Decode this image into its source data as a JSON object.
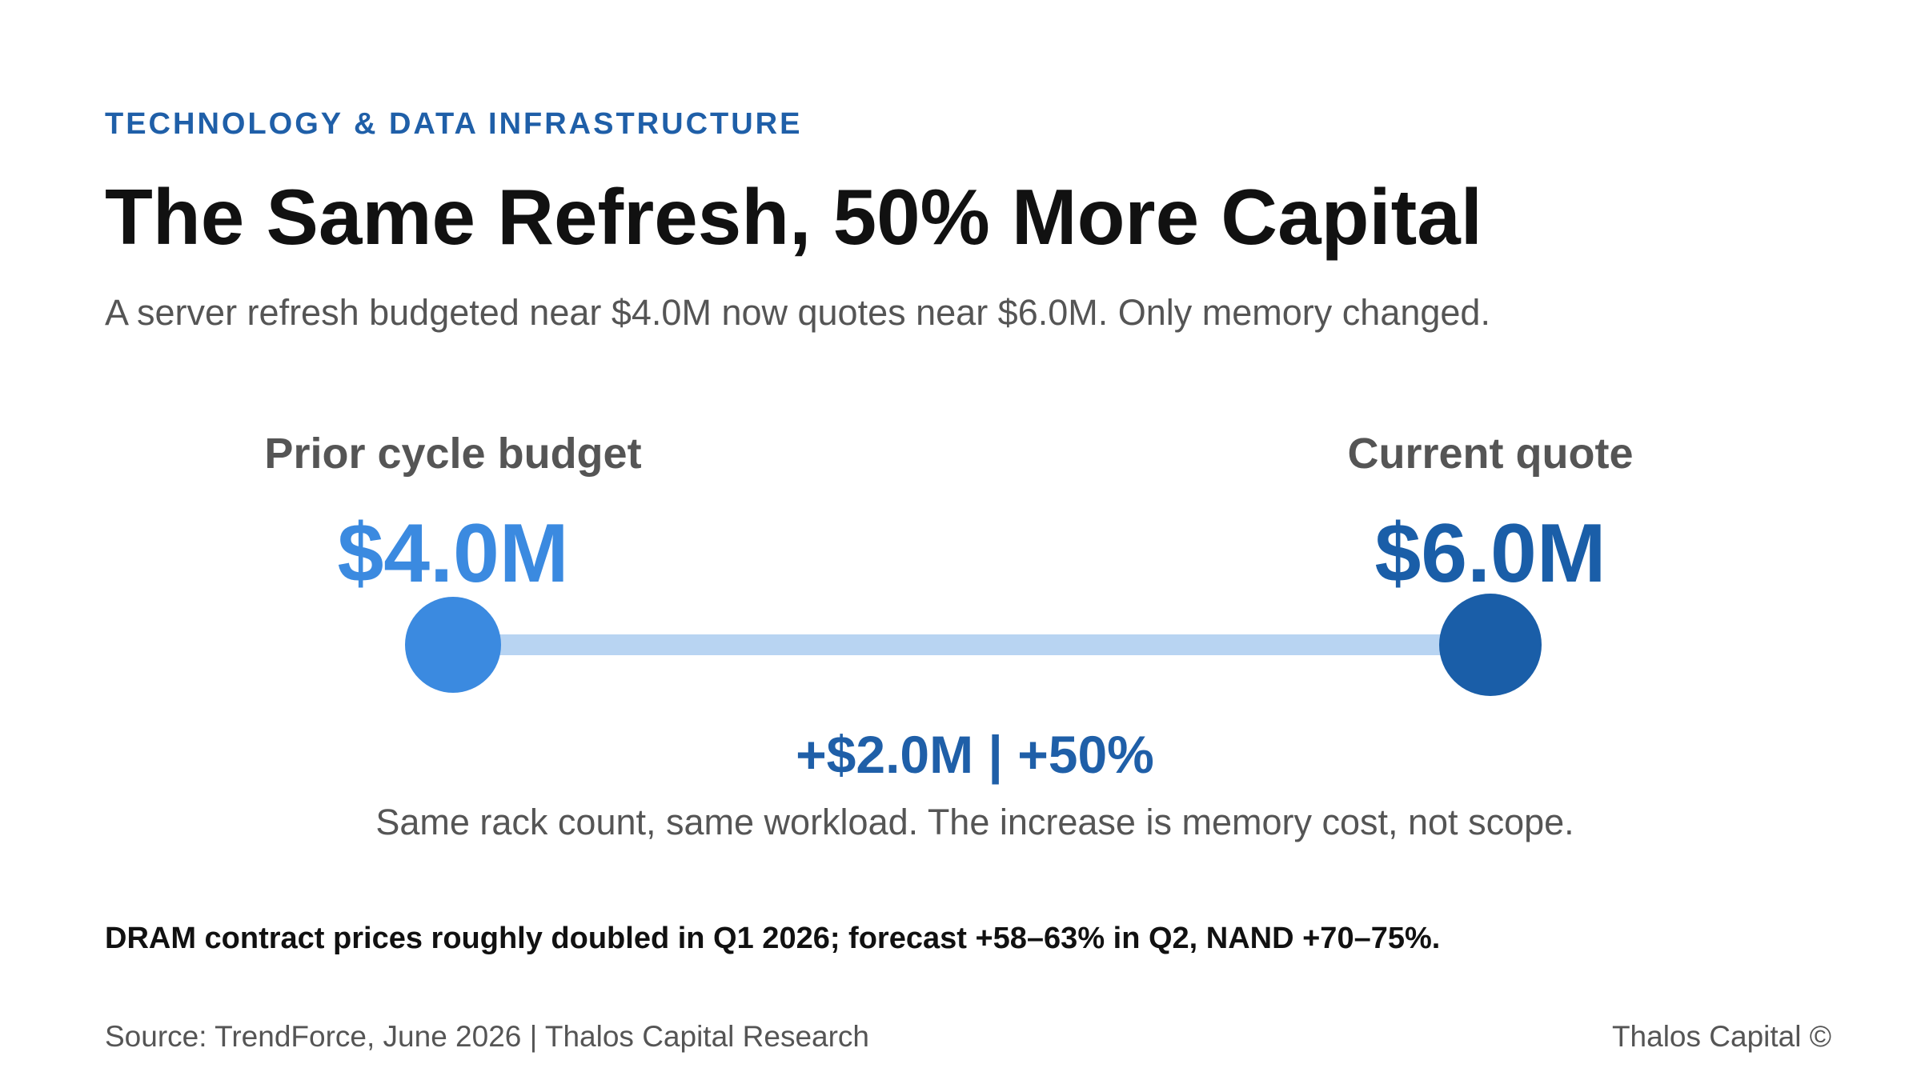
{
  "header": {
    "eyebrow": "TECHNOLOGY & DATA INFRASTRUCTURE",
    "title": "The Same Refresh, 50% More Capital",
    "subtitle": "A server refresh budgeted near $4.0M now quotes near $6.0M. Only memory changed."
  },
  "chart_data": {
    "type": "dumbbell",
    "unit": "$M",
    "points": [
      {
        "label": "Prior cycle budget",
        "value": 4.0,
        "display": "$4.0M",
        "color": "#3b8ae0"
      },
      {
        "label": "Current quote",
        "value": 6.0,
        "display": "$6.0M",
        "color": "#1a5ea8"
      }
    ],
    "connector_color": "#b8d4f2",
    "delta": {
      "text": "+$2.0M | +50%",
      "absolute": 2.0,
      "percent": 50,
      "color": "#1f5fa8"
    },
    "note": "Same rack count, same workload. The increase is memory cost, not scope."
  },
  "takeaway": "DRAM contract prices roughly doubled in Q1 2026; forecast +58–63% in Q2, NAND +70–75%.",
  "footer": {
    "source": "Source: TrendForce, June 2026 | Thalos Capital Research",
    "brand": "Thalos Capital ©"
  }
}
